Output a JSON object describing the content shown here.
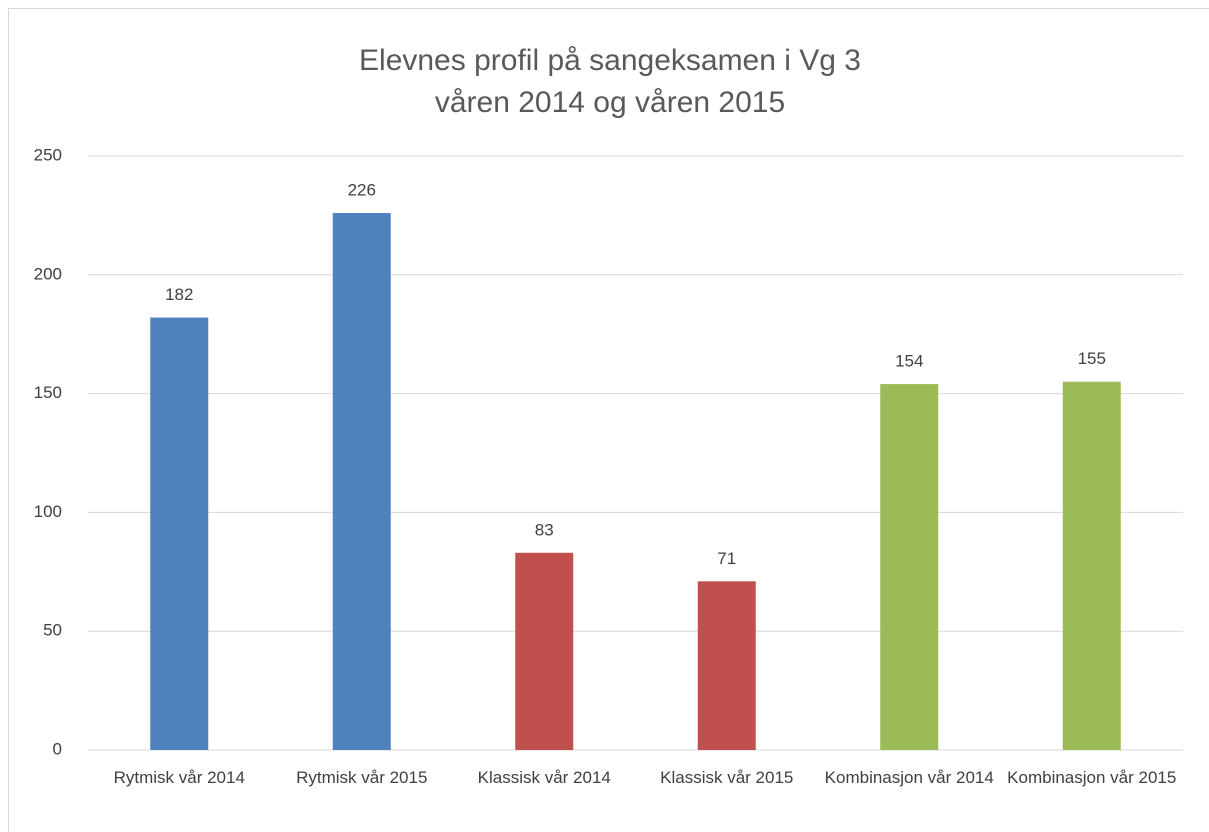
{
  "chart_data": {
    "type": "bar",
    "title": [
      "Elevnes profil på sangeksamen i Vg 3",
      "våren 2014 og våren 2015"
    ],
    "categories": [
      "Rytmisk vår 2014",
      "Rytmisk vår 2015",
      "Klassisk vår 2014",
      "Klassisk vår 2015",
      "Kombinasjon vår 2014",
      "Kombinasjon vår 2015"
    ],
    "values": [
      182,
      226,
      83,
      71,
      154,
      155
    ],
    "colors": [
      "#4f81bd",
      "#4f81bd",
      "#c0504d",
      "#c0504d",
      "#9bbb59",
      "#9bbb59"
    ],
    "ylim": [
      0,
      250
    ],
    "yticks": [
      0,
      50,
      100,
      150,
      200,
      250
    ],
    "grid": true
  }
}
